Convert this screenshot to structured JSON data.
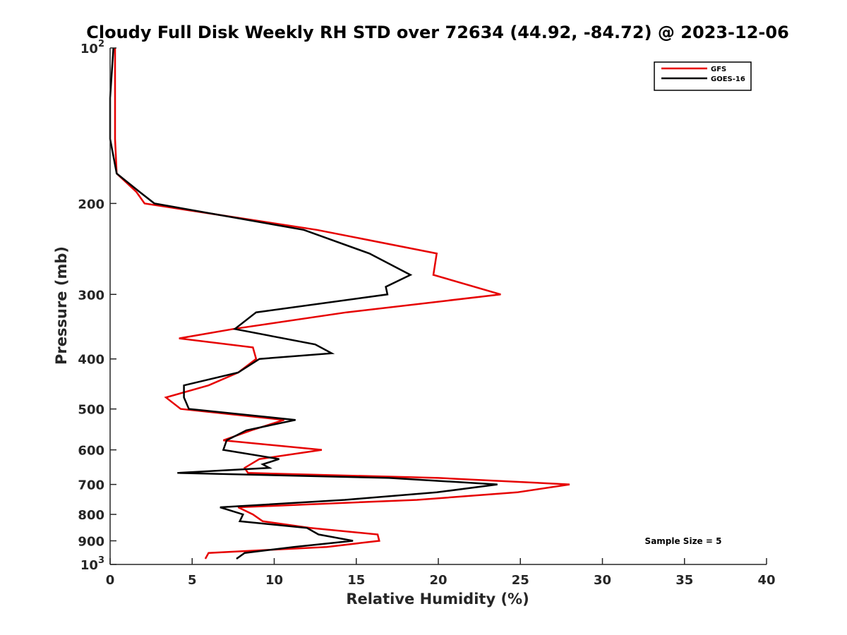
{
  "chart_data": {
    "type": "line",
    "title": "Cloudy Full Disk Weekly RH STD over 72634 (44.92, -84.72) @ 2023-12-06",
    "xlabel": "Relative Humidity (%)",
    "ylabel": "Pressure (mb)",
    "xlim": [
      0,
      40
    ],
    "ylim": [
      100,
      1000
    ],
    "y_scale": "log",
    "y_reversed": true,
    "grid": false,
    "legend_position": "top-right",
    "x_ticks": [
      "0",
      "5",
      "10",
      "15",
      "20",
      "25",
      "30",
      "35",
      "40"
    ],
    "y_ticks": [
      {
        "value": 100,
        "base": "10",
        "exp": "2"
      },
      {
        "value": 200,
        "label": "200"
      },
      {
        "value": 300,
        "label": "300"
      },
      {
        "value": 400,
        "label": "400"
      },
      {
        "value": 500,
        "label": "500"
      },
      {
        "value": 600,
        "label": "600"
      },
      {
        "value": 700,
        "label": "700"
      },
      {
        "value": 800,
        "label": "800"
      },
      {
        "value": 900,
        "label": "900"
      },
      {
        "value": 1000,
        "base": "10",
        "exp": "3"
      }
    ],
    "annotation": "Sample Size = 5",
    "series": [
      {
        "name": "GFS",
        "color": "#e60000",
        "points": [
          [
            0.3,
            100
          ],
          [
            0.3,
            125
          ],
          [
            0.3,
            150
          ],
          [
            0.4,
            175
          ],
          [
            1.6,
            190
          ],
          [
            2.1,
            200
          ],
          [
            12.6,
            225
          ],
          [
            19.9,
            250
          ],
          [
            19.7,
            275
          ],
          [
            23.8,
            300
          ],
          [
            14.4,
            325
          ],
          [
            7.5,
            350
          ],
          [
            4.2,
            365
          ],
          [
            8.7,
            380
          ],
          [
            8.9,
            400
          ],
          [
            7.8,
            425
          ],
          [
            6.0,
            450
          ],
          [
            3.4,
            475
          ],
          [
            4.3,
            500
          ],
          [
            10.6,
            525
          ],
          [
            8.6,
            550
          ],
          [
            6.9,
            575
          ],
          [
            12.9,
            600
          ],
          [
            9.1,
            625
          ],
          [
            8.2,
            650
          ],
          [
            8.4,
            665
          ],
          [
            20.0,
            680
          ],
          [
            28.0,
            700
          ],
          [
            24.8,
            725
          ],
          [
            18.7,
            750
          ],
          [
            7.8,
            775
          ],
          [
            8.7,
            800
          ],
          [
            9.3,
            825
          ],
          [
            12.2,
            850
          ],
          [
            16.3,
            875
          ],
          [
            16.4,
            900
          ],
          [
            13.2,
            925
          ],
          [
            6.0,
            950
          ],
          [
            5.8,
            975
          ]
        ]
      },
      {
        "name": "GOES-16",
        "color": "#000000",
        "points": [
          [
            0.2,
            100
          ],
          [
            0.0,
            125
          ],
          [
            0.0,
            150
          ],
          [
            0.4,
            175
          ],
          [
            1.8,
            190
          ],
          [
            2.7,
            200
          ],
          [
            11.8,
            225
          ],
          [
            15.8,
            250
          ],
          [
            18.3,
            275
          ],
          [
            16.8,
            290
          ],
          [
            16.9,
            300
          ],
          [
            8.9,
            325
          ],
          [
            7.6,
            350
          ],
          [
            12.5,
            375
          ],
          [
            13.5,
            390
          ],
          [
            9.1,
            400
          ],
          [
            7.8,
            425
          ],
          [
            4.5,
            450
          ],
          [
            4.5,
            475
          ],
          [
            4.8,
            500
          ],
          [
            11.3,
            525
          ],
          [
            8.3,
            550
          ],
          [
            7.1,
            575
          ],
          [
            6.9,
            600
          ],
          [
            10.3,
            625
          ],
          [
            9.3,
            640
          ],
          [
            9.7,
            650
          ],
          [
            4.1,
            665
          ],
          [
            17.0,
            680
          ],
          [
            23.6,
            700
          ],
          [
            19.9,
            725
          ],
          [
            14.3,
            750
          ],
          [
            6.7,
            775
          ],
          [
            8.1,
            800
          ],
          [
            7.9,
            825
          ],
          [
            12.0,
            850
          ],
          [
            12.7,
            875
          ],
          [
            14.8,
            900
          ],
          [
            11.2,
            925
          ],
          [
            8.2,
            950
          ],
          [
            7.7,
            975
          ]
        ]
      }
    ]
  }
}
